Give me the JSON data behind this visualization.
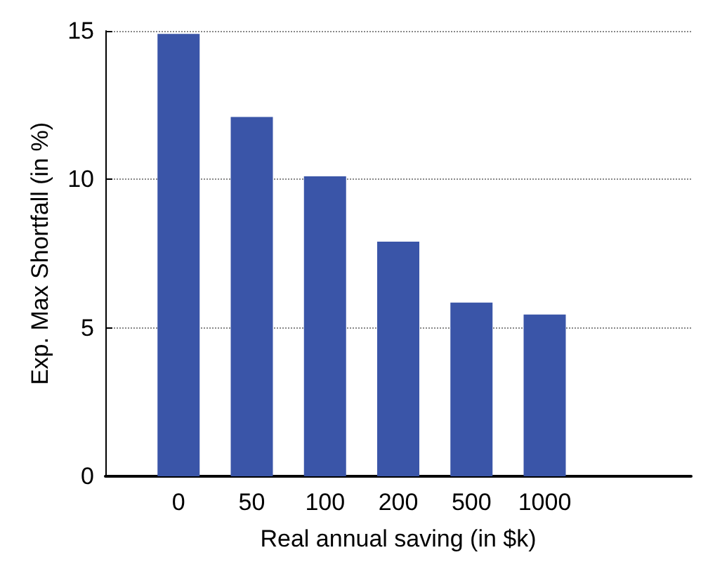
{
  "chart_data": {
    "type": "bar",
    "xlabel": "Real annual saving (in $k)",
    "ylabel": "Exp. Max Shortfall (in %)",
    "categories": [
      "0",
      "50",
      "100",
      "200",
      "500",
      "1000"
    ],
    "values": [
      14.9,
      12.1,
      10.1,
      7.9,
      5.85,
      5.45
    ],
    "color": "#3a55a8",
    "ylim": [
      0,
      15
    ],
    "yticks": [
      0,
      5,
      10,
      15
    ],
    "grid": "y"
  }
}
